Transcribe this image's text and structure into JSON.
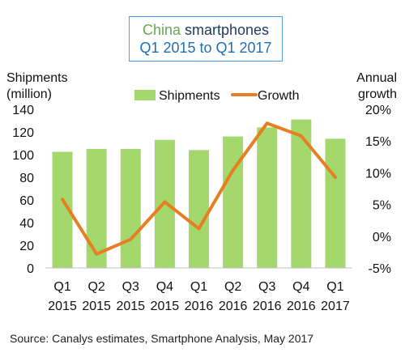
{
  "title": {
    "prefix": "China",
    "suffix": " smartphones",
    "line2": "Q1 2015 to Q1 2017"
  },
  "source": "Source: Canalys estimates, Smartphone Analysis, May 2017",
  "colors": {
    "bar": "#a4d86d",
    "line": "#e67e22",
    "title_box_border": "#5b9bd5"
  },
  "chart_data": {
    "type": "bar",
    "categories": [
      [
        "Q1",
        "2015"
      ],
      [
        "Q2",
        "2015"
      ],
      [
        "Q3",
        "2015"
      ],
      [
        "Q4",
        "2015"
      ],
      [
        "Q1",
        "2016"
      ],
      [
        "Q2",
        "2016"
      ],
      [
        "Q3",
        "2016"
      ],
      [
        "Q4",
        "2016"
      ],
      [
        "Q1",
        "2017"
      ]
    ],
    "ylabel_left": [
      "Shipments",
      "(million)"
    ],
    "ylabel_right": [
      "Annual",
      "growth"
    ],
    "left_axis": {
      "min": 0,
      "max": 140,
      "ticks": [
        0,
        20,
        40,
        60,
        80,
        100,
        120,
        140
      ]
    },
    "right_axis": {
      "min": -5,
      "max": 20,
      "ticks": [
        -5,
        0,
        5,
        10,
        15,
        20
      ],
      "tick_labels": [
        "-5%",
        "0%",
        "5%",
        "10%",
        "15%",
        "20%"
      ]
    },
    "series": [
      {
        "name": "Shipments",
        "type": "bar",
        "axis": "left",
        "values": [
          102.5,
          105,
          105,
          113,
          104,
          116,
          124,
          131,
          114
        ]
      },
      {
        "name": "Growth",
        "type": "line",
        "axis": "right",
        "values": [
          5.8,
          -2.8,
          -0.5,
          5.4,
          1.2,
          10.4,
          17.8,
          15.8,
          9.3
        ]
      }
    ],
    "legend": {
      "position": "top",
      "items": [
        "Shipments",
        "Growth"
      ]
    },
    "grid": false
  }
}
